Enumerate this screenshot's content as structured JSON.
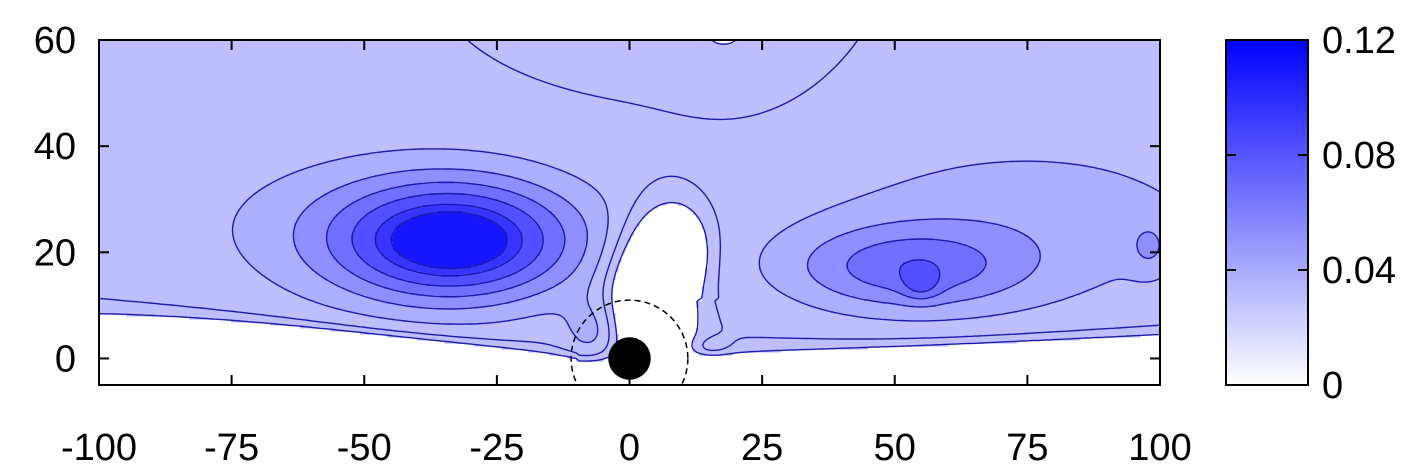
{
  "chart_data": {
    "type": "contour",
    "title": "",
    "xlabel": "",
    "ylabel": "",
    "xlim": [
      -100,
      100
    ],
    "ylim": [
      -5,
      60
    ],
    "x_ticks": [
      -100,
      -75,
      -50,
      -25,
      0,
      25,
      50,
      75,
      100
    ],
    "y_ticks": [
      0,
      20,
      40,
      60
    ],
    "colorbar": {
      "range": [
        0,
        0.12
      ],
      "ticks": [
        "0",
        "0.04",
        "0.08",
        "0.12"
      ],
      "color_low": "#ffffff",
      "color_high": "#0000ff"
    },
    "levels": [
      0.0,
      0.015,
      0.03,
      0.045,
      0.06,
      0.075,
      0.09,
      0.1
    ],
    "peaks": [
      {
        "x": -33,
        "y": 21,
        "value": 0.1
      },
      {
        "x": 55,
        "y": 15,
        "value": 0.075
      }
    ],
    "obstacle": {
      "x": 0,
      "y": 0,
      "solid_radius": 2.5,
      "dashed_radius": 11
    },
    "colors": {
      "contour_line": "#1a1aaa",
      "outline": "#000000"
    }
  }
}
